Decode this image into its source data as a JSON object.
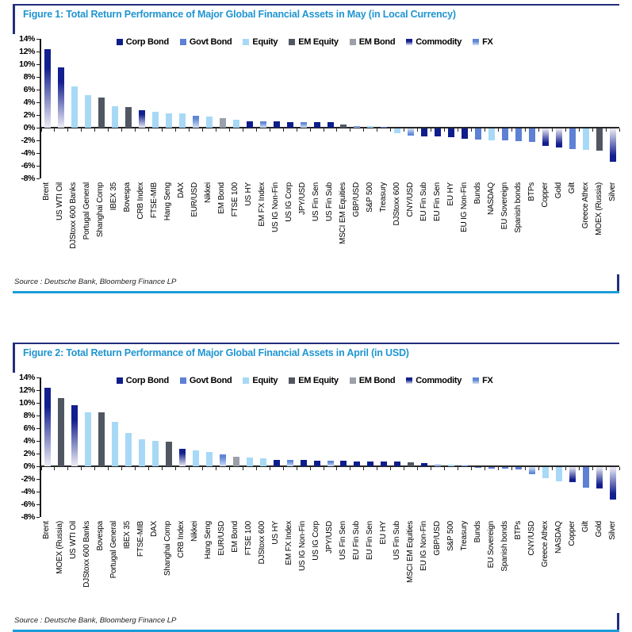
{
  "figures": [
    {
      "source": "Source : Deutsche Bank, Bloomberg Finance LP"
    },
    {
      "source": "Source : Deutsche Bank, Bloomberg Finance LP"
    }
  ],
  "style": {
    "title_color": "#2095d1",
    "frame_color": "#232e7d",
    "bottom_rule_color": "#1b9cd8",
    "axis_color": "#262626",
    "colors": {
      "corp": {
        "solid": "#0d1d8c"
      },
      "govt": {
        "solid": "#5e80d5"
      },
      "equity": {
        "solid": "#a7d9f6"
      },
      "em_equity": {
        "solid": "#515762"
      },
      "em_bond": {
        "solid": "#9ca0a8"
      },
      "commodity": {
        "grad_dark": "#131f8e",
        "grad_light": "#e6e6f2"
      },
      "fx": {
        "grad_dark": "#5f87d6",
        "grad_light": "#cfdff4"
      }
    }
  },
  "chart_data": [
    {
      "type": "bar",
      "title": "Figure 1: Total Return Performance of Major Global Financial Assets in May (in Local Currency)",
      "xlabel": "",
      "ylabel": "",
      "ylim": [
        -8,
        14
      ],
      "ytick_step": 2,
      "ytick_suffix": "%",
      "grid": false,
      "legend_position": "top-inside",
      "legend": [
        {
          "label": "Corp Bond",
          "key": "corp"
        },
        {
          "label": "Govt Bond",
          "key": "govt"
        },
        {
          "label": "Equity",
          "key": "equity"
        },
        {
          "label": "EM Equity",
          "key": "em_equity"
        },
        {
          "label": "EM Bond",
          "key": "em_bond"
        },
        {
          "label": "Commodity",
          "key": "commodity"
        },
        {
          "label": "FX",
          "key": "fx"
        }
      ],
      "categories": [
        "Brent",
        "US WTI Oil",
        "DJStoxx 600 Banks",
        "Portugal General",
        "Shanghai Comp",
        "IBEX 35",
        "Bovespa",
        "CRB Index",
        "FTSE-MIB",
        "Hang Seng",
        "DAX",
        "EUR/USD",
        "Nikkei",
        "EM Bond",
        "FTSE 100",
        "US HY",
        "EM FX Index",
        "US IG Non-Fin",
        "US IG Corp",
        "JPY/USD",
        "US Fin Sen",
        "US Fin Sub",
        "MSCI EM Equities",
        "GBP/USD",
        "S&P 500",
        "Treasury",
        "DJStoxx 600",
        "CNY/USD",
        "EU Fin Sub",
        "EU Fin Sen",
        "EU HY",
        "EU IG Non-Fin",
        "Bunds",
        "NASDAQ",
        "EU Sovereign",
        "Spanish bonds",
        "BTPs",
        "Copper",
        "Gold",
        "Gilt",
        "Greece Athex",
        "MOEX (Russia)",
        "Silver"
      ],
      "values": [
        12.4,
        9.5,
        6.5,
        5.1,
        4.8,
        3.4,
        3.3,
        2.8,
        2.5,
        2.3,
        2.2,
        1.9,
        1.7,
        1.5,
        1.3,
        1.0,
        1.0,
        1.0,
        0.9,
        0.9,
        0.9,
        0.9,
        0.5,
        0.3,
        0.2,
        0.1,
        -0.7,
        -1.1,
        -1.2,
        -1.3,
        -1.4,
        -1.6,
        -1.8,
        -1.9,
        -1.9,
        -2.0,
        -2.1,
        -2.8,
        -3.0,
        -3.2,
        -3.4,
        -3.5,
        -5.3
      ],
      "classes": [
        "commodity",
        "commodity",
        "equity",
        "equity",
        "em_equity",
        "equity",
        "em_equity",
        "commodity",
        "equity",
        "equity",
        "equity",
        "fx",
        "equity",
        "em_bond",
        "equity",
        "corp",
        "fx",
        "corp",
        "corp",
        "fx",
        "corp",
        "corp",
        "em_equity",
        "fx",
        "equity",
        "govt",
        "equity",
        "fx",
        "corp",
        "corp",
        "corp",
        "corp",
        "govt",
        "equity",
        "govt",
        "govt",
        "govt",
        "commodity",
        "commodity",
        "govt",
        "equity",
        "em_equity",
        "commodity"
      ]
    },
    {
      "type": "bar",
      "title": "Figure 2: Total Return Performance of Major Global Financial Assets in April (in USD)",
      "xlabel": "",
      "ylabel": "",
      "ylim": [
        -8,
        14
      ],
      "ytick_step": 2,
      "ytick_suffix": "%",
      "grid": false,
      "legend_position": "top-inside",
      "legend": [
        {
          "label": "Corp Bond",
          "key": "corp"
        },
        {
          "label": "Govt Bond",
          "key": "govt"
        },
        {
          "label": "Equity",
          "key": "equity"
        },
        {
          "label": "EM Equity",
          "key": "em_equity"
        },
        {
          "label": "EM Bond",
          "key": "em_bond"
        },
        {
          "label": "Commodity",
          "key": "commodity"
        },
        {
          "label": "FX",
          "key": "fx"
        }
      ],
      "categories": [
        "Brent",
        "MOEX (Russia)",
        "US WTI Oil",
        "DJStoxx 600 Banks",
        "Bovespa",
        "Portugal General",
        "IBEX 35",
        "FTSE-MIB",
        "DAX",
        "Shanghai Comp",
        "CRB Index",
        "Nikkei",
        "Hang Seng",
        "EUR/USD",
        "EM Bond",
        "FTSE 100",
        "DJStoxx 600",
        "US HY",
        "EM FX Index",
        "US IG Non-Fin",
        "US IG Corp",
        "JPY/USD",
        "US Fin Sen",
        "EU Fin Sub",
        "EU Fin Sen",
        "EU HY",
        "US Fin Sub",
        "MSCI EM Equities",
        "EU IG Non-Fin",
        "GBP/USD",
        "S&P 500",
        "Treasury",
        "Bunds",
        "EU Sovereign",
        "Spanish bonds",
        "BTPs",
        "CNY/USD",
        "Greece Athex",
        "NASDAQ",
        "Copper",
        "Gilt",
        "Gold",
        "Silver"
      ],
      "values": [
        12.4,
        10.7,
        9.6,
        8.5,
        8.5,
        7.0,
        5.2,
        4.3,
        4.0,
        3.9,
        2.8,
        2.5,
        2.3,
        1.9,
        1.5,
        1.4,
        1.3,
        1.0,
        1.0,
        1.0,
        0.9,
        0.9,
        0.9,
        0.8,
        0.8,
        0.7,
        0.7,
        0.6,
        0.5,
        0.3,
        0.25,
        0.1,
        -0.1,
        -0.2,
        -0.3,
        -0.4,
        -1.1,
        -1.7,
        -2.2,
        -2.4,
        -3.3,
        -3.4,
        -5.1
      ],
      "classes": [
        "commodity",
        "em_equity",
        "commodity",
        "equity",
        "em_equity",
        "equity",
        "equity",
        "equity",
        "equity",
        "em_equity",
        "commodity",
        "equity",
        "equity",
        "fx",
        "em_bond",
        "equity",
        "equity",
        "corp",
        "fx",
        "corp",
        "corp",
        "fx",
        "corp",
        "corp",
        "corp",
        "corp",
        "corp",
        "em_equity",
        "corp",
        "fx",
        "equity",
        "govt",
        "govt",
        "govt",
        "govt",
        "govt",
        "fx",
        "equity",
        "equity",
        "commodity",
        "govt",
        "commodity",
        "commodity"
      ]
    }
  ]
}
